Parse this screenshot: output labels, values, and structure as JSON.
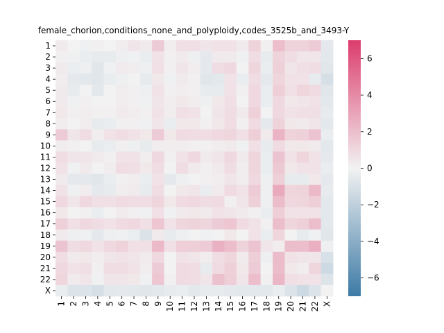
{
  "chart_data": {
    "type": "heatmap",
    "title": "female_chorion,conditions_none_and_polyploidy,codes_3525b_and_3493-Y",
    "xlabel": "",
    "ylabel": "",
    "row_labels": [
      "1",
      "2",
      "3",
      "4",
      "5",
      "6",
      "7",
      "8",
      "9",
      "10",
      "11",
      "12",
      "13",
      "14",
      "15",
      "16",
      "17",
      "18",
      "19",
      "20",
      "21",
      "22",
      "X"
    ],
    "col_labels": [
      "1",
      "2",
      "3",
      "4",
      "5",
      "6",
      "7",
      "8",
      "9",
      "10",
      "11",
      "12",
      "13",
      "14",
      "15",
      "16",
      "17",
      "18",
      "19",
      "20",
      "21",
      "22",
      "X"
    ],
    "zlim": [
      -7,
      7
    ],
    "colorbar_ticks": [
      6,
      4,
      2,
      0,
      -2,
      -4,
      -6
    ],
    "colormap": {
      "low": "#3d7aa6",
      "mid": "#f2f2f2",
      "high": "#dc3d6d",
      "diverging": true
    },
    "values": [
      [
        0.3,
        0.0,
        -0.1,
        0.1,
        0.0,
        0.2,
        0.5,
        0.3,
        1.5,
        0.2,
        0.7,
        0.7,
        0.5,
        0.6,
        0.6,
        0.3,
        1.2,
        0.1,
        2.0,
        1.2,
        1.2,
        1.5,
        -0.5
      ],
      [
        0.1,
        -0.1,
        -0.3,
        -0.4,
        -0.4,
        -0.2,
        -0.1,
        -0.3,
        0.6,
        0.1,
        0.3,
        -0.2,
        -0.5,
        0.3,
        0.3,
        -0.1,
        0.8,
        -0.4,
        1.2,
        0.8,
        0.5,
        0.5,
        -0.6
      ],
      [
        0.3,
        -0.3,
        -0.2,
        -0.7,
        -0.1,
        0.3,
        0.2,
        -0.2,
        0.7,
        0.1,
        0.5,
        0.2,
        -0.5,
        0.8,
        1.0,
        0.0,
        1.1,
        -0.3,
        1.3,
        0.5,
        0.7,
        0.8,
        -0.7
      ],
      [
        0.2,
        -0.5,
        -0.6,
        -0.7,
        -0.3,
        -0.2,
        0.0,
        -0.4,
        0.4,
        -0.1,
        0.3,
        0.1,
        -0.7,
        -0.6,
        0.6,
        -0.3,
        0.8,
        -0.5,
        1.1,
        0.6,
        0.6,
        -0.4,
        -1.1
      ],
      [
        0.3,
        -0.4,
        0.0,
        -0.6,
        0.0,
        0.2,
        0.1,
        -0.2,
        0.6,
        0.1,
        0.2,
        0.1,
        -0.4,
        -0.4,
        0.6,
        0.1,
        1.0,
        -0.3,
        1.4,
        0.7,
        1.1,
        0.9,
        -0.7
      ],
      [
        0.3,
        -0.1,
        0.1,
        0.0,
        0.0,
        0.2,
        0.1,
        -0.1,
        0.5,
        0.2,
        0.4,
        0.2,
        -0.2,
        0.4,
        0.7,
        0.0,
        1.0,
        -0.3,
        1.0,
        0.4,
        0.5,
        0.6,
        -0.6
      ],
      [
        0.4,
        0.1,
        0.2,
        0.1,
        0.1,
        0.3,
        0.2,
        0.1,
        0.6,
        0.2,
        0.7,
        0.6,
        0.0,
        0.5,
        0.8,
        0.3,
        1.3,
        0.0,
        1.0,
        0.6,
        0.7,
        0.7,
        -0.4
      ],
      [
        0.2,
        0.0,
        0.2,
        -0.4,
        -0.3,
        0.1,
        0.1,
        -0.1,
        0.5,
        -0.3,
        0.4,
        0.4,
        0.1,
        0.4,
        0.8,
        0.1,
        0.9,
        -0.5,
        1.2,
        0.4,
        0.3,
        0.5,
        -0.6
      ],
      [
        1.5,
        0.5,
        0.8,
        0.2,
        0.6,
        0.8,
        0.6,
        0.4,
        1.5,
        0.4,
        0.9,
        0.8,
        0.8,
        1.0,
        1.1,
        0.7,
        1.4,
        0.3,
        2.4,
        1.2,
        1.3,
        1.8,
        -0.3
      ],
      [
        0.2,
        0.1,
        0.0,
        -0.4,
        -0.3,
        0.1,
        -0.2,
        -0.4,
        0.2,
        0.2,
        0.2,
        0.1,
        0.1,
        0.2,
        0.3,
        -0.1,
        0.7,
        -0.4,
        0.9,
        0.4,
        0.4,
        0.3,
        -0.6
      ],
      [
        0.8,
        0.5,
        0.5,
        0.3,
        0.1,
        0.6,
        0.6,
        0.2,
        1.0,
        0.1,
        0.6,
        1.0,
        0.3,
        0.5,
        1.0,
        0.3,
        1.1,
        -0.3,
        1.8,
        0.6,
        1.1,
        0.6,
        -0.5
      ],
      [
        0.6,
        -0.1,
        0.3,
        0.0,
        0.2,
        0.8,
        0.7,
        0.4,
        0.8,
        0.0,
        0.8,
        0.3,
        0.1,
        0.3,
        0.8,
        0.2,
        1.1,
        -0.3,
        1.6,
        0.4,
        0.6,
        0.6,
        -0.3
      ],
      [
        0.3,
        -0.5,
        -0.5,
        -0.7,
        -0.3,
        0.1,
        0.2,
        -0.3,
        0.6,
        -0.5,
        -0.2,
        0.0,
        0.1,
        0.2,
        0.5,
        0.2,
        1.0,
        -0.2,
        1.3,
        -0.4,
        -0.4,
        0.4,
        -0.5
      ],
      [
        0.6,
        -0.1,
        0.2,
        -0.5,
        -0.4,
        0.2,
        0.3,
        -0.4,
        0.8,
        0.0,
        0.4,
        0.5,
        -0.3,
        0.3,
        0.9,
        0.6,
        1.5,
        -0.2,
        2.8,
        1.1,
        1.2,
        2.2,
        -0.4
      ],
      [
        1.0,
        0.5,
        1.0,
        0.7,
        0.7,
        0.9,
        0.8,
        0.8,
        1.1,
        0.4,
        0.9,
        1.0,
        0.8,
        0.9,
        0.1,
        0.5,
        1.3,
        -0.2,
        2.1,
        1.0,
        1.1,
        1.4,
        -0.6
      ],
      [
        0.4,
        0.0,
        0.1,
        -0.3,
        0.0,
        0.3,
        0.1,
        -0.1,
        0.7,
        -0.1,
        0.3,
        0.4,
        0.3,
        0.6,
        0.5,
        0.3,
        0.1,
        -0.3,
        1.4,
        0.6,
        0.6,
        0.6,
        -0.6
      ],
      [
        1.3,
        0.7,
        1.0,
        0.8,
        0.6,
        0.9,
        1.0,
        0.7,
        1.7,
        0.6,
        1.1,
        1.2,
        1.1,
        1.5,
        1.7,
        0.9,
        0.6,
        0.1,
        2.0,
        1.1,
        1.3,
        2.0,
        -0.6
      ],
      [
        0.3,
        -0.2,
        -0.1,
        -0.5,
        -0.2,
        -0.1,
        -0.3,
        -0.9,
        0.3,
        -0.4,
        -0.2,
        0.0,
        -0.1,
        0.0,
        0.4,
        0.0,
        0.6,
        -0.3,
        1.1,
        0.0,
        -0.4,
        -0.1,
        -0.7
      ],
      [
        1.8,
        0.8,
        1.0,
        0.6,
        1.0,
        1.2,
        0.7,
        0.7,
        2.2,
        0.7,
        1.4,
        1.4,
        1.5,
        2.5,
        2.0,
        1.2,
        1.8,
        0.5,
        0.2,
        2.0,
        2.0,
        2.6,
        -0.2
      ],
      [
        0.8,
        0.3,
        0.4,
        0.2,
        0.5,
        0.6,
        0.5,
        0.3,
        1.0,
        0.0,
        0.6,
        0.5,
        0.2,
        0.8,
        1.1,
        0.3,
        1.4,
        -0.2,
        2.1,
        0.6,
        0.5,
        0.5,
        -1.0
      ],
      [
        1.0,
        0.6,
        0.7,
        0.1,
        0.8,
        0.8,
        0.6,
        0.2,
        1.5,
        0.0,
        0.9,
        0.8,
        -0.4,
        0.9,
        1.3,
        0.4,
        1.5,
        0.0,
        2.1,
        0.4,
        0.2,
        1.1,
        -1.4
      ],
      [
        1.1,
        0.3,
        0.5,
        -0.1,
        0.5,
        0.5,
        0.4,
        -0.1,
        1.7,
        0.1,
        0.9,
        0.8,
        0.5,
        1.9,
        1.4,
        0.5,
        2.0,
        0.1,
        2.3,
        0.7,
        0.6,
        0.6,
        -0.8
      ],
      [
        -0.3,
        -0.8,
        -0.8,
        -1.1,
        -0.6,
        -0.5,
        -0.6,
        -0.7,
        -0.6,
        -0.4,
        -0.3,
        -0.6,
        -0.4,
        -0.4,
        -0.5,
        -0.6,
        -0.6,
        -0.6,
        -0.3,
        -0.8,
        -1.4,
        -0.8,
        0.0
      ]
    ]
  }
}
